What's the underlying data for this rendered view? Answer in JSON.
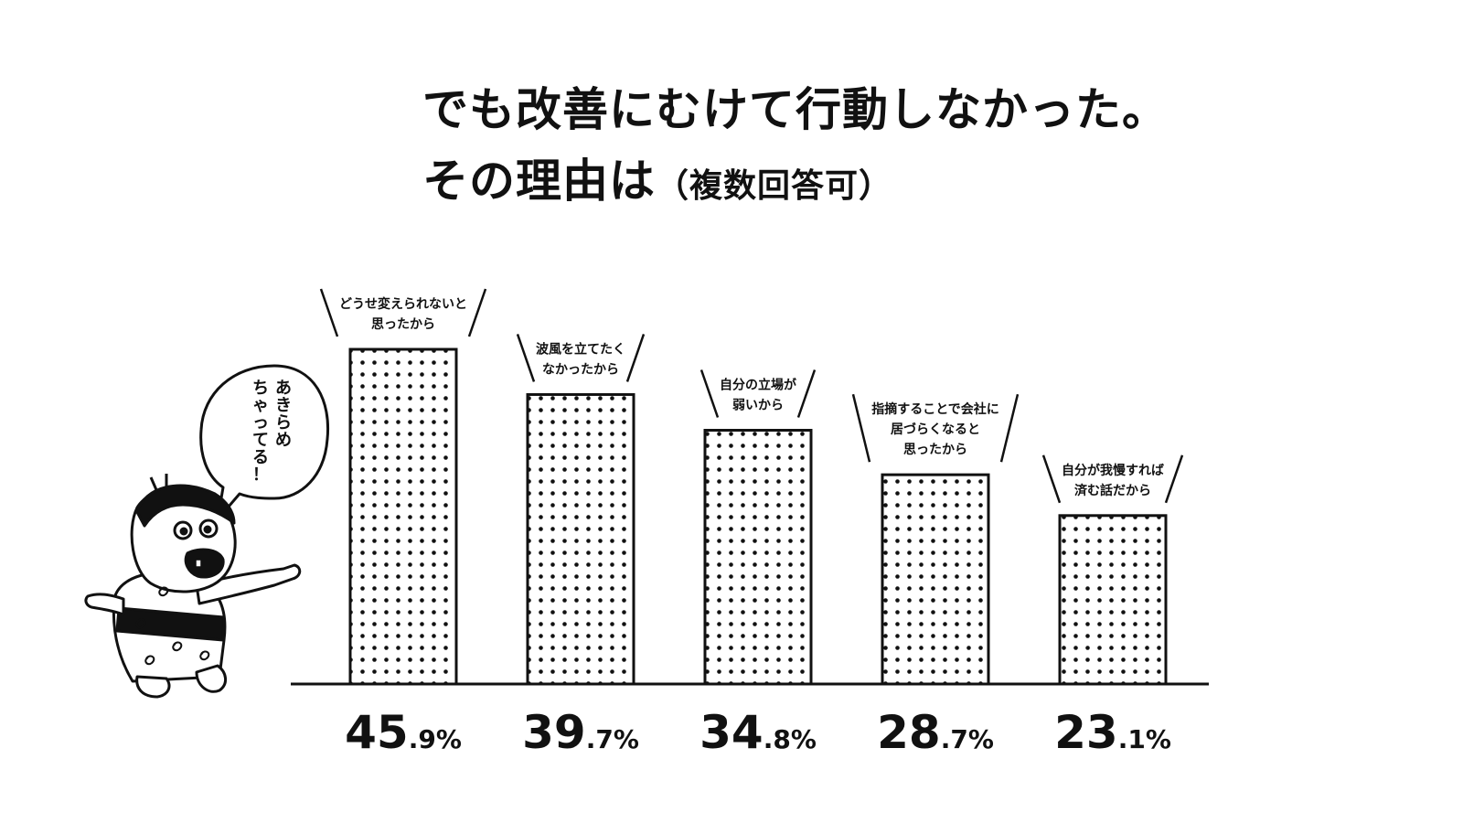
{
  "chart_data": {
    "type": "bar",
    "title_line1": "でも改善にむけて行動しなかった。",
    "title_line2_main": "その理由は",
    "title_line2_note": "（複数回答可）",
    "ylim": [
      0,
      50
    ],
    "categories": [
      [
        "どうせ変えられないと",
        "思ったから"
      ],
      [
        "波風を立てたく",
        "なかったから"
      ],
      [
        "自分の立場が",
        "弱いから"
      ],
      [
        "指摘することで会社に",
        "居づらくなると",
        "思ったから"
      ],
      [
        "自分が我慢すれば",
        "済む話だから"
      ]
    ],
    "values": [
      45.9,
      39.7,
      34.8,
      28.7,
      23.1
    ],
    "value_labels": [
      {
        "int": "45",
        "dec": ".9%"
      },
      {
        "int": "39",
        "dec": ".7%"
      },
      {
        "int": "34",
        "dec": ".8%"
      },
      {
        "int": "28",
        "dec": ".7%"
      },
      {
        "int": "23",
        "dec": ".1%"
      }
    ],
    "fill_pattern": "dots",
    "bar_color": "#111111"
  },
  "illustration": {
    "speech_bubble_lines": [
      "あきらめ",
      "ちゃってる！"
    ]
  }
}
